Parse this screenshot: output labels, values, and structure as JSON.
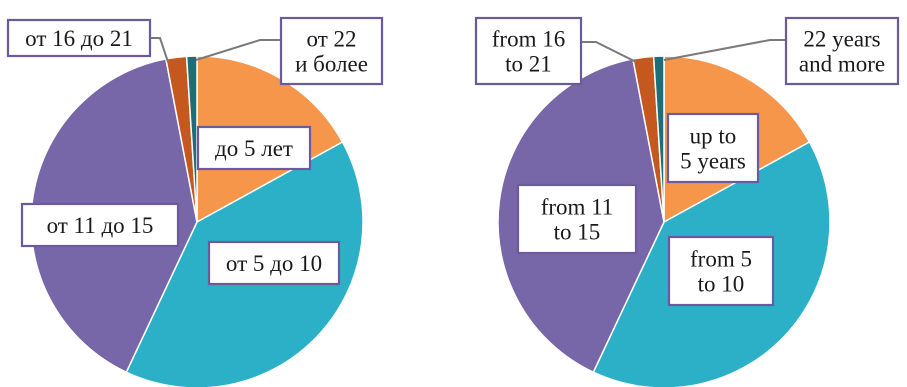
{
  "chart_data": [
    {
      "type": "pie",
      "language": "ru",
      "categories": [
        "до 5 лет",
        "от 5 до 10",
        "от 11 до 15",
        "от 16 до 21",
        "от 22 и более"
      ],
      "values": [
        17,
        40,
        40,
        2,
        1
      ],
      "colors": [
        "#f5964b",
        "#2bb0c8",
        "#7766a8",
        "#c4581f",
        "#1d6e78"
      ],
      "label_lines": [
        [
          "до 5 лет"
        ],
        [
          "от 5 до 10"
        ],
        [
          "от 11 до 15"
        ],
        [
          "от 16 до 21"
        ],
        [
          "от 22",
          "и более"
        ]
      ]
    },
    {
      "type": "pie",
      "language": "en",
      "categories": [
        "up to 5 years",
        "from 5 to 10",
        "from 11 to 15",
        "from 16 to 21",
        "22 years and more"
      ],
      "values": [
        17,
        40,
        40,
        2,
        1
      ],
      "colors": [
        "#f5964b",
        "#2bb0c8",
        "#7766a8",
        "#c4581f",
        "#1d6e78"
      ],
      "label_lines": [
        [
          "up to",
          "5 years"
        ],
        [
          "from 5",
          "to 10"
        ],
        [
          "from 11",
          "to 15"
        ],
        [
          "from 16",
          "to 21"
        ],
        [
          "22 years",
          "and more"
        ]
      ]
    }
  ]
}
